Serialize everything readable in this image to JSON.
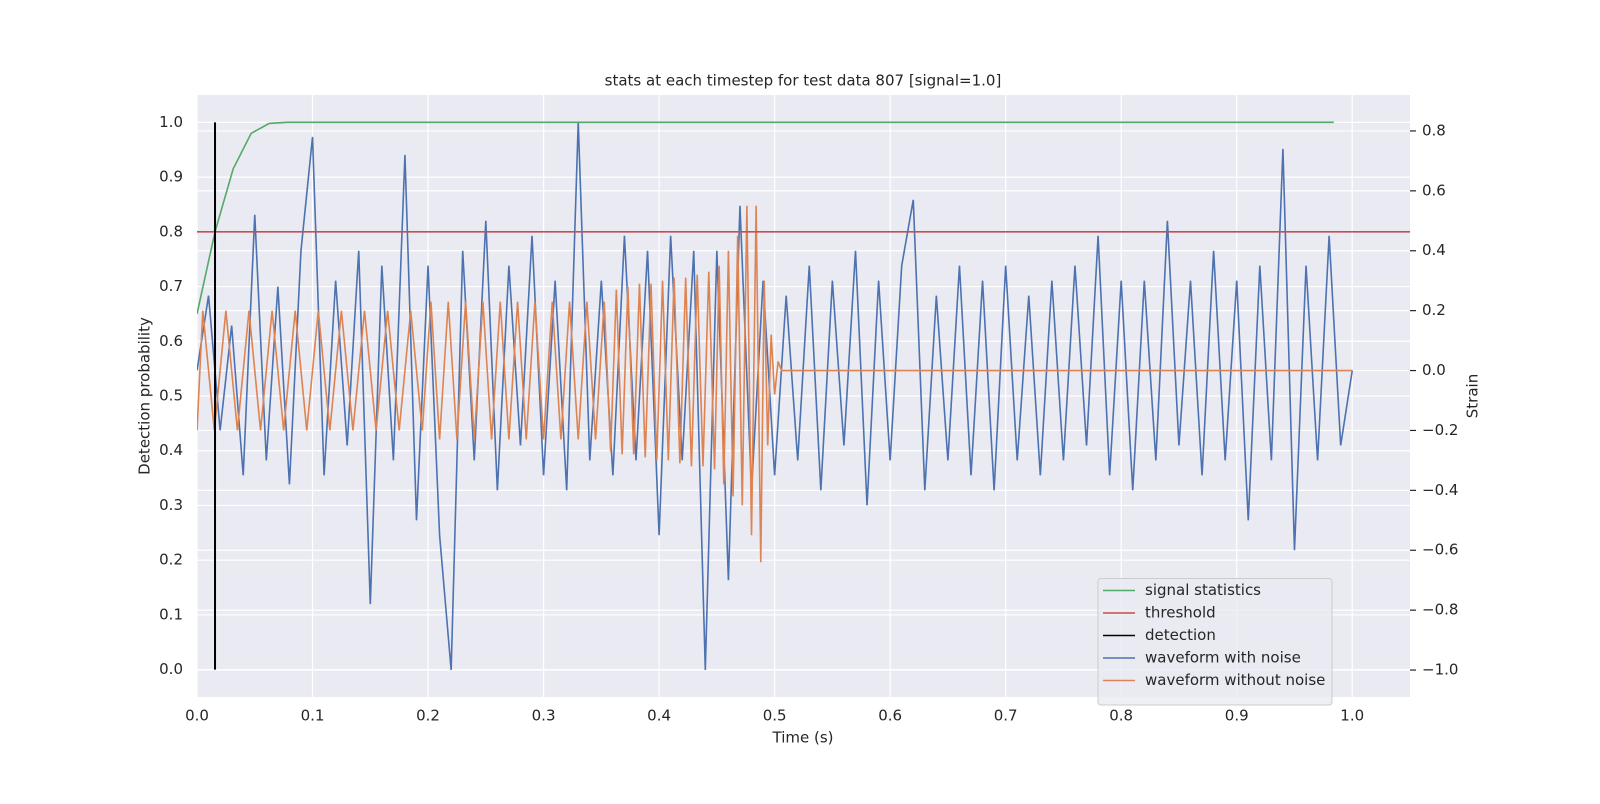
{
  "chart_data": {
    "type": "line",
    "title": "stats at each timestep for test data 807 [signal=1.0]",
    "xlabel": "Time (s)",
    "ylabel": "Detection probability",
    "y2label": "Strain",
    "grid": true,
    "legend": "lower right",
    "xlim": [
      0,
      1.05
    ],
    "xticks": [
      {
        "value": 0,
        "label": "0.0"
      },
      0.1,
      0.2,
      0.3,
      0.4,
      0.5,
      0.6,
      0.7,
      0.8,
      0.9,
      {
        "value": 1,
        "label": "1.0"
      }
    ],
    "ylim": [
      -0.05,
      1.05
    ],
    "yticks": [
      {
        "value": 0,
        "label": "0.0"
      },
      0.1,
      0.2,
      0.3,
      0.4,
      0.5,
      0.6,
      0.7,
      0.8,
      0.9,
      {
        "value": 1,
        "label": "1.0"
      }
    ],
    "y2lim": [
      -1.09,
      0.92
    ],
    "y2ticks": [
      {
        "value": -1,
        "label": "−1.0"
      },
      {
        "value": -0.8,
        "label": "−0.8"
      },
      {
        "value": -0.6,
        "label": "−0.6"
      },
      {
        "value": -0.4,
        "label": "−0.4"
      },
      {
        "value": -0.2,
        "label": "−0.2"
      },
      {
        "value": 0,
        "label": "0.0"
      },
      0.2,
      0.4,
      0.6,
      0.8
    ],
    "series": [
      {
        "name": "signal statistics",
        "color": "#55a868",
        "axis": "y",
        "x": [
          0,
          0.0156,
          0.0313,
          0.0469,
          0.0625,
          0.078,
          0.984
        ],
        "values": [
          0.65,
          0.8,
          0.915,
          0.98,
          0.998,
          1.0,
          1.0
        ]
      },
      {
        "name": "threshold",
        "color": "#c44e52",
        "hline": 0.8
      },
      {
        "name": "detection",
        "color": "#000000",
        "vline": 0.0156,
        "span": [
          0,
          1
        ]
      },
      {
        "name": "waveform with noise",
        "color": "#4c72b0",
        "axis": "y2",
        "x": [
          0,
          0.01,
          0.02,
          0.03,
          0.04,
          0.05,
          0.06,
          0.07,
          0.08,
          0.09,
          0.1,
          0.11,
          0.12,
          0.13,
          0.14,
          0.15,
          0.16,
          0.17,
          0.18,
          0.19,
          0.2,
          0.21,
          0.22,
          0.23,
          0.24,
          0.25,
          0.26,
          0.27,
          0.28,
          0.29,
          0.3,
          0.31,
          0.32,
          0.33,
          0.34,
          0.35,
          0.36,
          0.37,
          0.38,
          0.39,
          0.4,
          0.41,
          0.42,
          0.43,
          0.44,
          0.45,
          0.46,
          0.47,
          0.48,
          0.49,
          0.5,
          0.51,
          0.52,
          0.53,
          0.54,
          0.55,
          0.56,
          0.57,
          0.58,
          0.59,
          0.6,
          0.61,
          0.62,
          0.63,
          0.64,
          0.65,
          0.66,
          0.67,
          0.68,
          0.69,
          0.7,
          0.71,
          0.72,
          0.73,
          0.74,
          0.75,
          0.76,
          0.77,
          0.78,
          0.79,
          0.8,
          0.81,
          0.82,
          0.83,
          0.84,
          0.85,
          0.86,
          0.87,
          0.88,
          0.89,
          0.9,
          0.91,
          0.92,
          0.93,
          0.94,
          0.95,
          0.96,
          0.97,
          0.98,
          0.99,
          1.0
        ],
        "values": [
          0,
          0.25,
          -0.2,
          0.15,
          -0.35,
          0.52,
          -0.3,
          0.28,
          -0.38,
          0.4,
          0.78,
          -0.35,
          0.3,
          -0.25,
          0.4,
          -0.78,
          0.35,
          -0.3,
          0.72,
          -0.5,
          0.35,
          -0.55,
          -1.0,
          0.4,
          -0.3,
          0.5,
          -0.4,
          0.35,
          -0.25,
          0.45,
          -0.35,
          0.3,
          -0.4,
          0.83,
          -0.3,
          0.3,
          -0.35,
          0.45,
          -0.3,
          0.4,
          -0.55,
          0.45,
          -0.3,
          0.4,
          -1.0,
          0.4,
          -0.7,
          0.55,
          -0.4,
          0.3,
          -0.35,
          0.25,
          -0.3,
          0.35,
          -0.4,
          0.3,
          -0.25,
          0.4,
          -0.45,
          0.3,
          -0.3,
          0.35,
          0.57,
          -0.4,
          0.25,
          -0.3,
          0.35,
          -0.35,
          0.3,
          -0.4,
          0.35,
          -0.3,
          0.25,
          -0.35,
          0.3,
          -0.3,
          0.35,
          -0.25,
          0.45,
          -0.35,
          0.3,
          -0.4,
          0.3,
          -0.3,
          0.5,
          -0.25,
          0.3,
          -0.35,
          0.4,
          -0.3,
          0.3,
          -0.5,
          0.35,
          -0.3,
          0.74,
          -0.6,
          0.35,
          -0.3,
          0.45,
          -0.25,
          0
        ]
      },
      {
        "name": "waveform without noise",
        "color": "#dd8452",
        "axis": "y2",
        "x": [
          0,
          0.005,
          0.015,
          0.025,
          0.035,
          0.045,
          0.055,
          0.065,
          0.075,
          0.085,
          0.095,
          0.105,
          0.115,
          0.125,
          0.135,
          0.145,
          0.155,
          0.165,
          0.175,
          0.185,
          0.195,
          0.2025,
          0.21,
          0.2175,
          0.225,
          0.2325,
          0.24,
          0.2475,
          0.255,
          0.2625,
          0.27,
          0.2775,
          0.285,
          0.2925,
          0.3,
          0.3075,
          0.315,
          0.3225,
          0.33,
          0.3375,
          0.345,
          0.3525,
          0.358,
          0.363,
          0.368,
          0.373,
          0.378,
          0.383,
          0.388,
          0.393,
          0.398,
          0.403,
          0.408,
          0.413,
          0.418,
          0.423,
          0.428,
          0.433,
          0.438,
          0.443,
          0.448,
          0.452,
          0.456,
          0.46,
          0.464,
          0.468,
          0.472,
          0.476,
          0.48,
          0.484,
          0.488,
          0.491,
          0.494,
          0.497,
          0.5,
          0.503,
          0.506,
          1.0
        ],
        "values": [
          -0.2,
          0.2,
          -0.2,
          0.2,
          -0.2,
          0.2,
          -0.2,
          0.2,
          -0.2,
          0.2,
          -0.2,
          0.2,
          -0.2,
          0.2,
          -0.2,
          0.2,
          -0.2,
          0.2,
          -0.2,
          0.2,
          -0.2,
          0.23,
          -0.23,
          0.23,
          -0.23,
          0.23,
          -0.23,
          0.23,
          -0.23,
          0.23,
          -0.23,
          0.23,
          -0.23,
          0.23,
          -0.23,
          0.23,
          -0.23,
          0.23,
          -0.23,
          0.23,
          -0.23,
          0.23,
          -0.27,
          0.27,
          -0.28,
          0.28,
          -0.28,
          0.29,
          -0.29,
          0.29,
          -0.3,
          0.3,
          -0.3,
          0.31,
          -0.31,
          0.31,
          -0.32,
          0.32,
          -0.32,
          0.33,
          -0.33,
          0.35,
          -0.38,
          0.4,
          -0.42,
          0.45,
          -0.45,
          0.55,
          -0.55,
          0.55,
          -0.64,
          0.3,
          -0.25,
          0.12,
          -0.08,
          0.03,
          0,
          0
        ]
      }
    ]
  }
}
